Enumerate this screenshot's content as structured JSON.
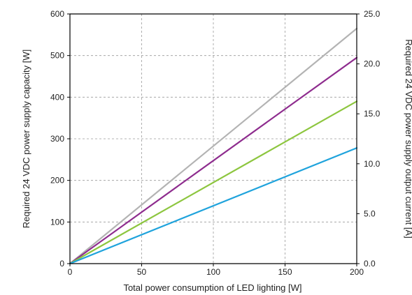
{
  "chart_data": {
    "type": "line",
    "title": "",
    "xlabel": "Total power consumption of LED lighting [W]",
    "ylabel": "Required 24 VDC power supply capacity [W]",
    "y2label": "Required 24 VDC power supply output current [A]",
    "xlim": [
      0,
      200
    ],
    "ylim": [
      0,
      600
    ],
    "y2lim": [
      0,
      25
    ],
    "x_ticks": [
      "0",
      "50",
      "100",
      "150",
      "200"
    ],
    "y_ticks": [
      "0",
      "100",
      "200",
      "300",
      "400",
      "500",
      "600"
    ],
    "y2_ticks": [
      "0.0",
      "5.0",
      "10.0",
      "15.0",
      "20.0",
      "25.0"
    ],
    "grid": true,
    "series": [
      {
        "color": "#b3b3b3",
        "x": [
          0,
          200
        ],
        "y": [
          0,
          565
        ]
      },
      {
        "color": "#8e2c8e",
        "x": [
          0,
          200
        ],
        "y": [
          0,
          495
        ]
      },
      {
        "color": "#8dc63f",
        "x": [
          0,
          200
        ],
        "y": [
          0,
          390
        ]
      },
      {
        "color": "#1fa3dc",
        "x": [
          0,
          200
        ],
        "y": [
          0,
          278
        ]
      }
    ]
  }
}
